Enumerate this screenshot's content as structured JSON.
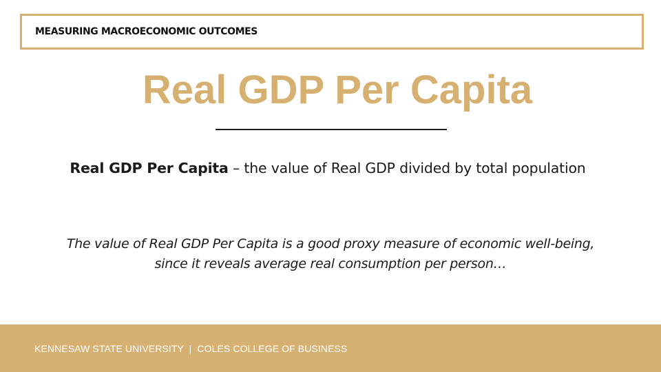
{
  "header": {
    "section_label": "MEASURING MACROECONOMIC OUTCOMES"
  },
  "slide": {
    "title": "Real GDP Per Capita",
    "definition_term": "Real GDP Per Capita",
    "definition_text": " – the value of Real GDP divided by total population",
    "note_line1": "The value of Real GDP Per Capita is a good proxy measure of economic well-being,",
    "note_line2": "since it reveals average real consumption per person…"
  },
  "footer": {
    "text": "KENNESAW STATE UNIVERSITY  |  COLES COLLEGE OF BUSINESS"
  },
  "colors": {
    "accent_gold": "#d6b071",
    "text_dark": "#1a1a1a",
    "footer_text": "#ffffff"
  }
}
